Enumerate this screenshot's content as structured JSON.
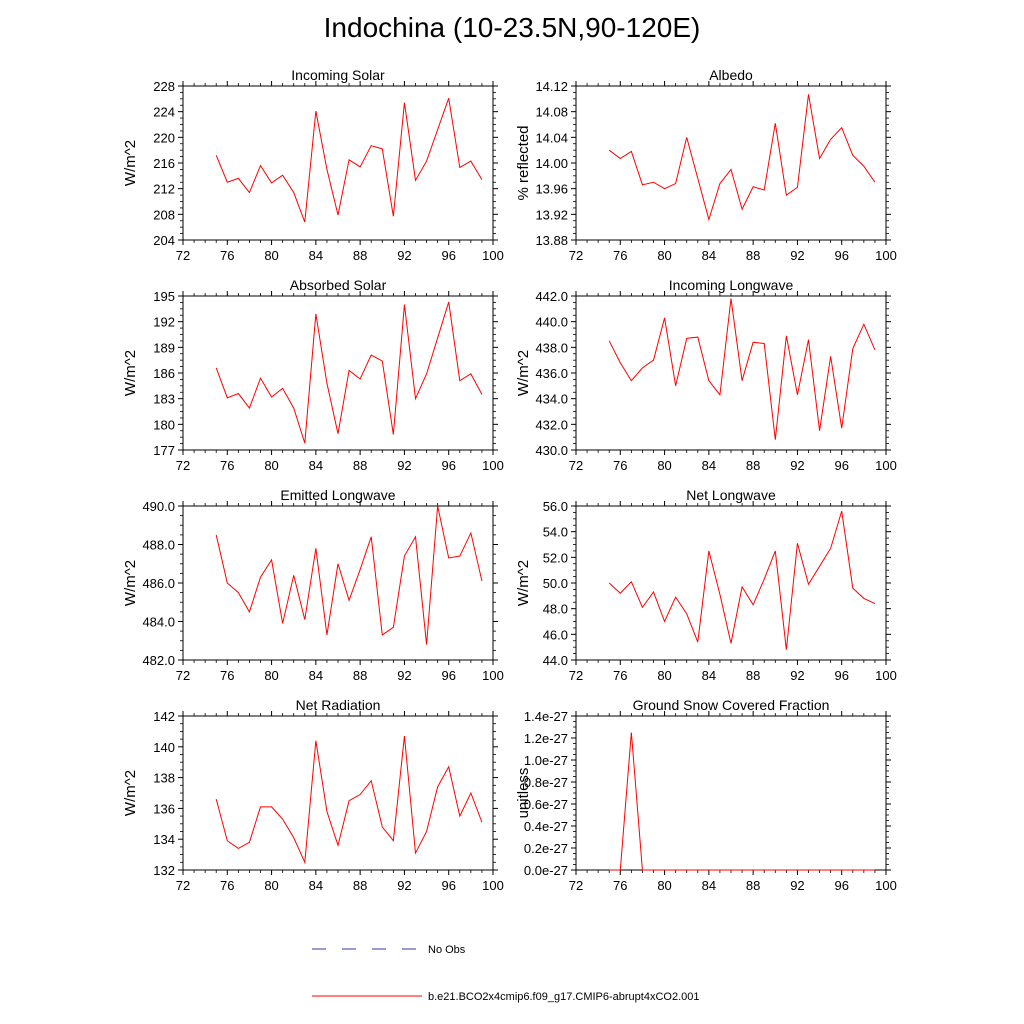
{
  "title": "Indochina (10-23.5N,90-120E)",
  "colors": {
    "model_line": "#ff0000",
    "obs_line": "#3333aa",
    "axis": "#000000"
  },
  "legend": {
    "obs_label": "No Obs",
    "model_label": "b.e21.BCO2x4cmip6.f09_g17.CMIP6-abrupt4xCO2.001"
  },
  "chart_data": [
    {
      "type": "line",
      "title": "Incoming Solar",
      "ylabel": "W/m^2",
      "xlim": [
        72,
        100
      ],
      "xticks": [
        72,
        76,
        80,
        84,
        88,
        92,
        96,
        100
      ],
      "ylim": [
        204,
        228
      ],
      "yticks": [
        204,
        208,
        212,
        216,
        220,
        224,
        228
      ],
      "ytick_labels": [
        "204",
        "208",
        "212",
        "216",
        "220",
        "224",
        "228"
      ],
      "series": [
        {
          "name": "b.e21.BCO2x4cmip6.f09_g17.CMIP6-abrupt4xCO2.001",
          "x": [
            75,
            76,
            77,
            78,
            79,
            80,
            81,
            82,
            83,
            84,
            85,
            86,
            87,
            88,
            89,
            90,
            91,
            92,
            93,
            94,
            95,
            96,
            97,
            98,
            99
          ],
          "values": [
            217.2,
            213.0,
            213.6,
            211.4,
            215.6,
            212.9,
            214.1,
            211.4,
            206.8,
            224.1,
            215.0,
            207.9,
            216.5,
            215.4,
            218.7,
            218.2,
            207.7,
            225.4,
            213.3,
            216.3,
            221.2,
            226.1,
            215.3,
            216.3,
            213.4
          ]
        }
      ]
    },
    {
      "type": "line",
      "title": "Albedo",
      "ylabel": "% reflected",
      "xlim": [
        72,
        100
      ],
      "xticks": [
        72,
        76,
        80,
        84,
        88,
        92,
        96,
        100
      ],
      "ylim": [
        13.88,
        14.12
      ],
      "yticks": [
        13.88,
        13.92,
        13.96,
        14.0,
        14.04,
        14.08,
        14.12
      ],
      "ytick_labels": [
        "13.88",
        "13.92",
        "13.96",
        "14.00",
        "14.04",
        "14.08",
        "14.12"
      ],
      "series": [
        {
          "name": "b.e21.BCO2x4cmip6.f09_g17.CMIP6-abrupt4xCO2.001",
          "x": [
            75,
            76,
            77,
            78,
            79,
            80,
            81,
            82,
            83,
            84,
            85,
            86,
            87,
            88,
            89,
            90,
            91,
            92,
            93,
            94,
            95,
            96,
            97,
            98,
            99
          ],
          "values": [
            14.02,
            14.007,
            14.018,
            13.966,
            13.97,
            13.96,
            13.968,
            14.04,
            13.976,
            13.912,
            13.968,
            13.99,
            13.928,
            13.963,
            13.958,
            14.062,
            13.95,
            13.962,
            14.107,
            14.007,
            14.037,
            14.055,
            14.012,
            13.995,
            13.97
          ]
        }
      ]
    },
    {
      "type": "line",
      "title": "Absorbed Solar",
      "ylabel": "W/m^2",
      "xlim": [
        72,
        100
      ],
      "xticks": [
        72,
        76,
        80,
        84,
        88,
        92,
        96,
        100
      ],
      "ylim": [
        177,
        195
      ],
      "yticks": [
        177,
        180,
        183,
        186,
        189,
        192,
        195
      ],
      "ytick_labels": [
        "177",
        "180",
        "183",
        "186",
        "189",
        "192",
        "195"
      ],
      "series": [
        {
          "name": "b.e21.BCO2x4cmip6.f09_g17.CMIP6-abrupt4xCO2.001",
          "x": [
            75,
            76,
            77,
            78,
            79,
            80,
            81,
            82,
            83,
            84,
            85,
            86,
            87,
            88,
            89,
            90,
            91,
            92,
            93,
            94,
            95,
            96,
            97,
            98,
            99
          ],
          "values": [
            186.6,
            183.1,
            183.6,
            181.9,
            185.4,
            183.2,
            184.2,
            181.9,
            177.8,
            192.9,
            184.8,
            178.9,
            186.3,
            185.3,
            188.1,
            187.4,
            178.8,
            194.0,
            183.0,
            185.9,
            190.1,
            194.3,
            185.1,
            185.9,
            183.5
          ]
        }
      ]
    },
    {
      "type": "line",
      "title": "Incoming Longwave",
      "ylabel": "W/m^2",
      "xlim": [
        72,
        100
      ],
      "xticks": [
        72,
        76,
        80,
        84,
        88,
        92,
        96,
        100
      ],
      "ylim": [
        430.0,
        442.0
      ],
      "yticks": [
        430,
        432,
        434,
        436,
        438,
        440,
        442
      ],
      "ytick_labels": [
        "430.0",
        "432.0",
        "434.0",
        "436.0",
        "438.0",
        "440.0",
        "442.0"
      ],
      "series": [
        {
          "name": "b.e21.BCO2x4cmip6.f09_g17.CMIP6-abrupt4xCO2.001",
          "x": [
            75,
            76,
            77,
            78,
            79,
            80,
            81,
            82,
            83,
            84,
            85,
            86,
            87,
            88,
            89,
            90,
            91,
            92,
            93,
            94,
            95,
            96,
            97,
            98,
            99
          ],
          "values": [
            438.5,
            436.8,
            435.4,
            436.4,
            437.0,
            440.3,
            435.0,
            438.7,
            438.8,
            435.4,
            434.3,
            441.8,
            435.4,
            438.4,
            438.3,
            430.8,
            438.9,
            434.3,
            438.6,
            431.5,
            437.3,
            431.7,
            437.9,
            439.8,
            437.8
          ]
        }
      ]
    },
    {
      "type": "line",
      "title": "Emitted Longwave",
      "ylabel": "W/m^2",
      "xlim": [
        72,
        100
      ],
      "xticks": [
        72,
        76,
        80,
        84,
        88,
        92,
        96,
        100
      ],
      "ylim": [
        482.0,
        490.0
      ],
      "yticks": [
        482,
        484,
        486,
        488,
        490
      ],
      "ytick_labels": [
        "482.0",
        "484.0",
        "486.0",
        "488.0",
        "490.0"
      ],
      "series": [
        {
          "name": "b.e21.BCO2x4cmip6.f09_g17.CMIP6-abrupt4xCO2.001",
          "x": [
            75,
            76,
            77,
            78,
            79,
            80,
            81,
            82,
            83,
            84,
            85,
            86,
            87,
            88,
            89,
            90,
            91,
            92,
            93,
            94,
            95,
            96,
            97,
            98,
            99
          ],
          "values": [
            488.5,
            486.0,
            485.5,
            484.5,
            486.3,
            487.2,
            483.9,
            486.4,
            484.1,
            487.8,
            483.3,
            487.0,
            485.1,
            486.7,
            488.4,
            483.3,
            483.7,
            487.4,
            488.4,
            482.8,
            490.0,
            487.3,
            487.4,
            488.6,
            486.1
          ]
        }
      ]
    },
    {
      "type": "line",
      "title": "Net Longwave",
      "ylabel": "W/m^2",
      "xlim": [
        72,
        100
      ],
      "xticks": [
        72,
        76,
        80,
        84,
        88,
        92,
        96,
        100
      ],
      "ylim": [
        44.0,
        56.0
      ],
      "yticks": [
        44,
        46,
        48,
        50,
        52,
        54,
        56
      ],
      "ytick_labels": [
        "44.0",
        "46.0",
        "48.0",
        "50.0",
        "52.0",
        "54.0",
        "56.0"
      ],
      "series": [
        {
          "name": "b.e21.BCO2x4cmip6.f09_g17.CMIP6-abrupt4xCO2.001",
          "x": [
            75,
            76,
            77,
            78,
            79,
            80,
            81,
            82,
            83,
            84,
            85,
            86,
            87,
            88,
            89,
            90,
            91,
            92,
            93,
            94,
            95,
            96,
            97,
            98,
            99
          ],
          "values": [
            50.0,
            49.2,
            50.1,
            48.1,
            49.3,
            47.0,
            48.9,
            47.6,
            45.4,
            52.5,
            49.1,
            45.3,
            49.7,
            48.3,
            50.3,
            52.5,
            44.8,
            53.1,
            49.9,
            51.3,
            52.7,
            55.6,
            49.6,
            48.8,
            48.4
          ]
        }
      ]
    },
    {
      "type": "line",
      "title": "Net Radiation",
      "ylabel": "W/m^2",
      "xlim": [
        72,
        100
      ],
      "xticks": [
        72,
        76,
        80,
        84,
        88,
        92,
        96,
        100
      ],
      "ylim": [
        132,
        142
      ],
      "yticks": [
        132,
        134,
        136,
        138,
        140,
        142
      ],
      "ytick_labels": [
        "132",
        "134",
        "136",
        "138",
        "140",
        "142"
      ],
      "series": [
        {
          "name": "b.e21.BCO2x4cmip6.f09_g17.CMIP6-abrupt4xCO2.001",
          "x": [
            75,
            76,
            77,
            78,
            79,
            80,
            81,
            82,
            83,
            84,
            85,
            86,
            87,
            88,
            89,
            90,
            91,
            92,
            93,
            94,
            95,
            96,
            97,
            98,
            99
          ],
          "values": [
            136.6,
            133.9,
            133.4,
            133.8,
            136.1,
            136.1,
            135.3,
            134.1,
            132.5,
            140.4,
            135.8,
            133.6,
            136.5,
            136.9,
            137.8,
            134.8,
            133.9,
            140.7,
            133.1,
            134.5,
            137.4,
            138.7,
            135.5,
            137.0,
            135.1
          ]
        }
      ]
    },
    {
      "type": "line",
      "title": "Ground Snow Covered Fraction",
      "ylabel": "unitless",
      "xlim": [
        72,
        100
      ],
      "xticks": [
        72,
        76,
        80,
        84,
        88,
        92,
        96,
        100
      ],
      "ylim": [
        0.0,
        1.4
      ],
      "yticks": [
        0.0,
        0.2,
        0.4,
        0.6,
        0.8,
        1.0,
        1.2,
        1.4
      ],
      "ytick_labels": [
        "0.0e-27",
        "0.2e-27",
        "0.4e-27",
        "0.6e-27",
        "0.8e-27",
        "1.0e-27",
        "1.2e-27",
        "1.4e-27"
      ],
      "y_scale_note": "values in units of 1e-27",
      "series": [
        {
          "name": "b.e21.BCO2x4cmip6.f09_g17.CMIP6-abrupt4xCO2.001",
          "x": [
            75,
            76,
            77,
            78,
            79,
            80,
            81,
            82,
            83,
            84,
            85,
            86,
            87,
            88,
            89,
            90,
            91,
            92,
            93,
            94,
            95,
            96,
            97,
            98,
            99
          ],
          "values": [
            0,
            0,
            1.25,
            0,
            0,
            0,
            0,
            0,
            0,
            0,
            0,
            0,
            0,
            0,
            0,
            0,
            0,
            0,
            0,
            0,
            0,
            0,
            0,
            0,
            0
          ]
        }
      ]
    }
  ]
}
